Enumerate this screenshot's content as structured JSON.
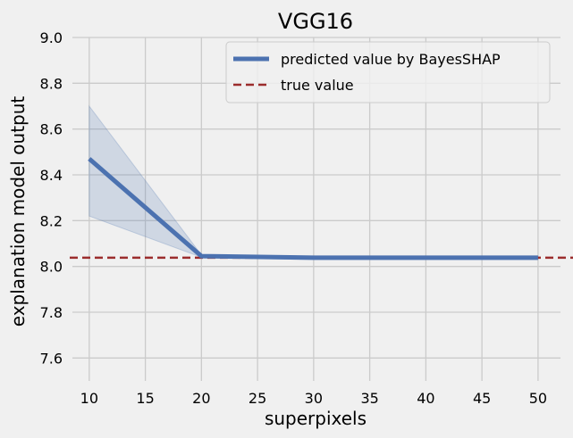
{
  "chart_data": {
    "type": "line",
    "title": "VGG16",
    "xlabel": "superpixels",
    "ylabel": "explanation model output",
    "x": [
      10,
      20,
      30,
      40,
      50
    ],
    "xlim": [
      8.5,
      52
    ],
    "ylim": [
      7.5,
      9.0
    ],
    "xticks": [
      10,
      15,
      20,
      25,
      30,
      35,
      40,
      45,
      50
    ],
    "yticks": [
      7.6,
      7.8,
      8.0,
      8.2,
      8.4,
      8.6,
      8.8,
      9.0
    ],
    "grid": true,
    "legend_position": "top-right",
    "series": [
      {
        "name": "predicted value by BayesSHAP",
        "values": [
          8.47,
          8.045,
          8.038,
          8.038,
          8.038
        ],
        "lower": [
          8.22,
          8.04,
          8.03,
          8.03,
          8.03
        ],
        "upper": [
          8.7,
          8.05,
          8.045,
          8.045,
          8.045
        ],
        "color": "#4c72b0",
        "band_color": "#4c72b0"
      }
    ],
    "reference_lines": [
      {
        "name": "true value",
        "y": 8.038,
        "color": "#9b2c2c",
        "style": "dashed"
      }
    ]
  }
}
